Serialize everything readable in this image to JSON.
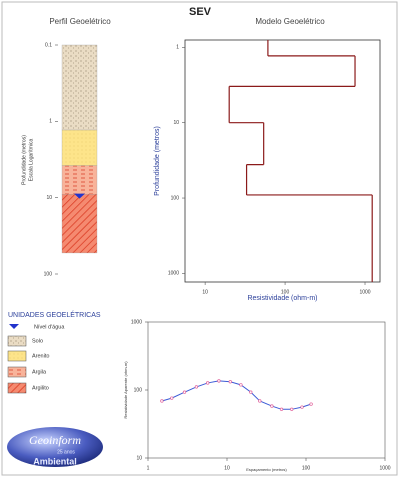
{
  "title": "SEV",
  "chart_data": [
    {
      "type": "column",
      "title": "Perfil Geoelétrico",
      "ylabel": [
        "Profundidade (metros)",
        "Escala Logarítmica"
      ],
      "log_y": true,
      "ylim": [
        0.1,
        100
      ],
      "yticks": [
        0.1,
        1,
        10,
        100
      ],
      "layer_bottoms": [
        1.3,
        3.8,
        9,
        53
      ],
      "water_level": 10
    },
    {
      "type": "step",
      "title": "Modelo Geoelétrico",
      "xlabel": "Resistividade (ohm-m)",
      "ylabel": "Profundidade (metros)",
      "log_x": true,
      "log_y": true,
      "xlim": [
        5.6,
        1540
      ],
      "ylim": [
        0.8,
        1300
      ],
      "xticks": [
        10,
        100,
        1000
      ],
      "yticks": [
        1,
        10,
        100,
        1000
      ],
      "color": "#8b1a1a",
      "resistivity": [
        61,
        750,
        20,
        54,
        33,
        1230
      ],
      "depths": [
        1.3,
        3.3,
        10,
        36,
        91
      ]
    },
    {
      "type": "line",
      "xlabel": "Espaçamento (metros)",
      "ylabel": "Resistividade Aparente (ohm-m)",
      "log_x": true,
      "log_y": true,
      "xlim": [
        1,
        1000
      ],
      "ylim": [
        10,
        1000
      ],
      "xticks": [
        1,
        10,
        100,
        1000
      ],
      "yticks": [
        10,
        100,
        1000
      ],
      "color": "#3b5bd6",
      "marker_color": "#e0609a",
      "x": [
        1.5,
        2.0,
        2.9,
        4.1,
        5.7,
        7.9,
        11,
        15,
        20,
        26,
        37,
        49,
        66,
        89,
        116
      ],
      "values": [
        69,
        76,
        93,
        111,
        127,
        136,
        132,
        119,
        93,
        69,
        58,
        52,
        52,
        56,
        62
      ]
    }
  ],
  "legend": {
    "title": "UNIDADES GEOELÉTRICAS",
    "items": [
      "Nível d'água",
      "Solo",
      "Arenito",
      "Argila",
      "Argilito"
    ]
  },
  "logo": {
    "name": "Geoinform",
    "years": "25 anos",
    "sub": "Ambiental"
  }
}
